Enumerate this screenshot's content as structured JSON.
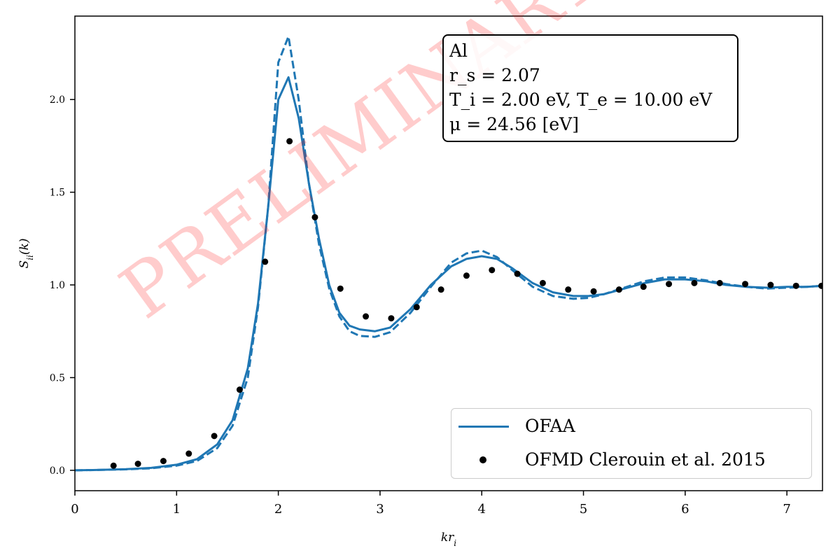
{
  "chart_data": {
    "type": "line",
    "xlabel": "kr_i",
    "ylabel": "S_ii(k)",
    "xlim": [
      0,
      7.35
    ],
    "ylim": [
      -0.11,
      2.45
    ],
    "x_ticks": [
      "0",
      "1",
      "2",
      "3",
      "4",
      "5",
      "6",
      "7"
    ],
    "y_ticks": [
      "0.0",
      "0.5",
      "1.0",
      "1.5",
      "2.0"
    ],
    "grid": false,
    "legend_position": "bottom-right",
    "series": [
      {
        "name": "OFAA",
        "style": "solid",
        "color": "#1f77b4",
        "x": [
          0,
          0.25,
          0.5,
          0.75,
          1.0,
          1.2,
          1.4,
          1.55,
          1.7,
          1.8,
          1.9,
          2.0,
          2.1,
          2.2,
          2.3,
          2.4,
          2.5,
          2.6,
          2.7,
          2.8,
          2.95,
          3.1,
          3.3,
          3.5,
          3.7,
          3.85,
          4.0,
          4.15,
          4.3,
          4.5,
          4.7,
          4.9,
          5.05,
          5.2,
          5.4,
          5.6,
          5.8,
          6.0,
          6.2,
          6.4,
          6.6,
          6.8,
          7.0,
          7.2,
          7.35
        ],
        "y": [
          0.0,
          0.002,
          0.006,
          0.013,
          0.03,
          0.06,
          0.14,
          0.27,
          0.55,
          0.9,
          1.42,
          2.0,
          2.12,
          1.9,
          1.55,
          1.25,
          1.0,
          0.85,
          0.78,
          0.76,
          0.75,
          0.77,
          0.87,
          1.0,
          1.1,
          1.14,
          1.155,
          1.14,
          1.09,
          1.01,
          0.96,
          0.94,
          0.94,
          0.95,
          0.98,
          1.01,
          1.03,
          1.03,
          1.02,
          1.0,
          0.99,
          0.985,
          0.99,
          0.99,
          0.995
        ]
      },
      {
        "name": "",
        "style": "dashed",
        "color": "#1f77b4",
        "x": [
          0,
          0.25,
          0.5,
          0.75,
          1.0,
          1.2,
          1.4,
          1.55,
          1.7,
          1.8,
          1.9,
          2.0,
          2.1,
          2.2,
          2.3,
          2.4,
          2.5,
          2.6,
          2.7,
          2.8,
          2.95,
          3.1,
          3.3,
          3.5,
          3.7,
          3.85,
          4.0,
          4.15,
          4.3,
          4.5,
          4.7,
          4.9,
          5.05,
          5.2,
          5.4,
          5.6,
          5.8,
          6.0,
          6.2,
          6.4,
          6.6,
          6.8,
          7.0,
          7.2,
          7.35
        ],
        "y": [
          0.0,
          0.002,
          0.005,
          0.011,
          0.025,
          0.05,
          0.12,
          0.24,
          0.5,
          0.88,
          1.42,
          2.2,
          2.34,
          2.0,
          1.55,
          1.22,
          0.98,
          0.83,
          0.75,
          0.725,
          0.72,
          0.745,
          0.85,
          0.99,
          1.12,
          1.17,
          1.185,
          1.15,
          1.08,
          0.99,
          0.94,
          0.925,
          0.93,
          0.95,
          0.985,
          1.02,
          1.04,
          1.04,
          1.025,
          1.005,
          0.99,
          0.98,
          0.985,
          0.99,
          0.995
        ]
      },
      {
        "name": "OFMD Clerouin et al. 2015",
        "style": "points",
        "color": "#000000",
        "x": [
          0.38,
          0.62,
          0.87,
          1.12,
          1.37,
          1.62,
          1.87,
          2.11,
          2.36,
          2.61,
          2.86,
          3.11,
          3.36,
          3.6,
          3.85,
          4.1,
          4.35,
          4.6,
          4.85,
          5.1,
          5.35,
          5.59,
          5.84,
          6.09,
          6.34,
          6.59,
          6.84,
          7.09,
          7.34
        ],
        "y": [
          0.025,
          0.035,
          0.05,
          0.09,
          0.185,
          0.435,
          1.125,
          1.775,
          1.365,
          0.98,
          0.83,
          0.82,
          0.88,
          0.975,
          1.05,
          1.08,
          1.06,
          1.01,
          0.975,
          0.965,
          0.975,
          0.99,
          1.005,
          1.01,
          1.01,
          1.005,
          1.0,
          0.995,
          0.995
        ]
      }
    ]
  },
  "annotation": {
    "line1": "Al",
    "line2": "r_s = 2.07",
    "line3": "T_i = 2.00 eV, T_e = 10.00 eV",
    "line4": "μ = 24.56 [eV]"
  },
  "legend": {
    "items": [
      "OFAA",
      "OFMD Clerouin et al. 2015"
    ]
  },
  "watermark": "PRELIMINARY"
}
